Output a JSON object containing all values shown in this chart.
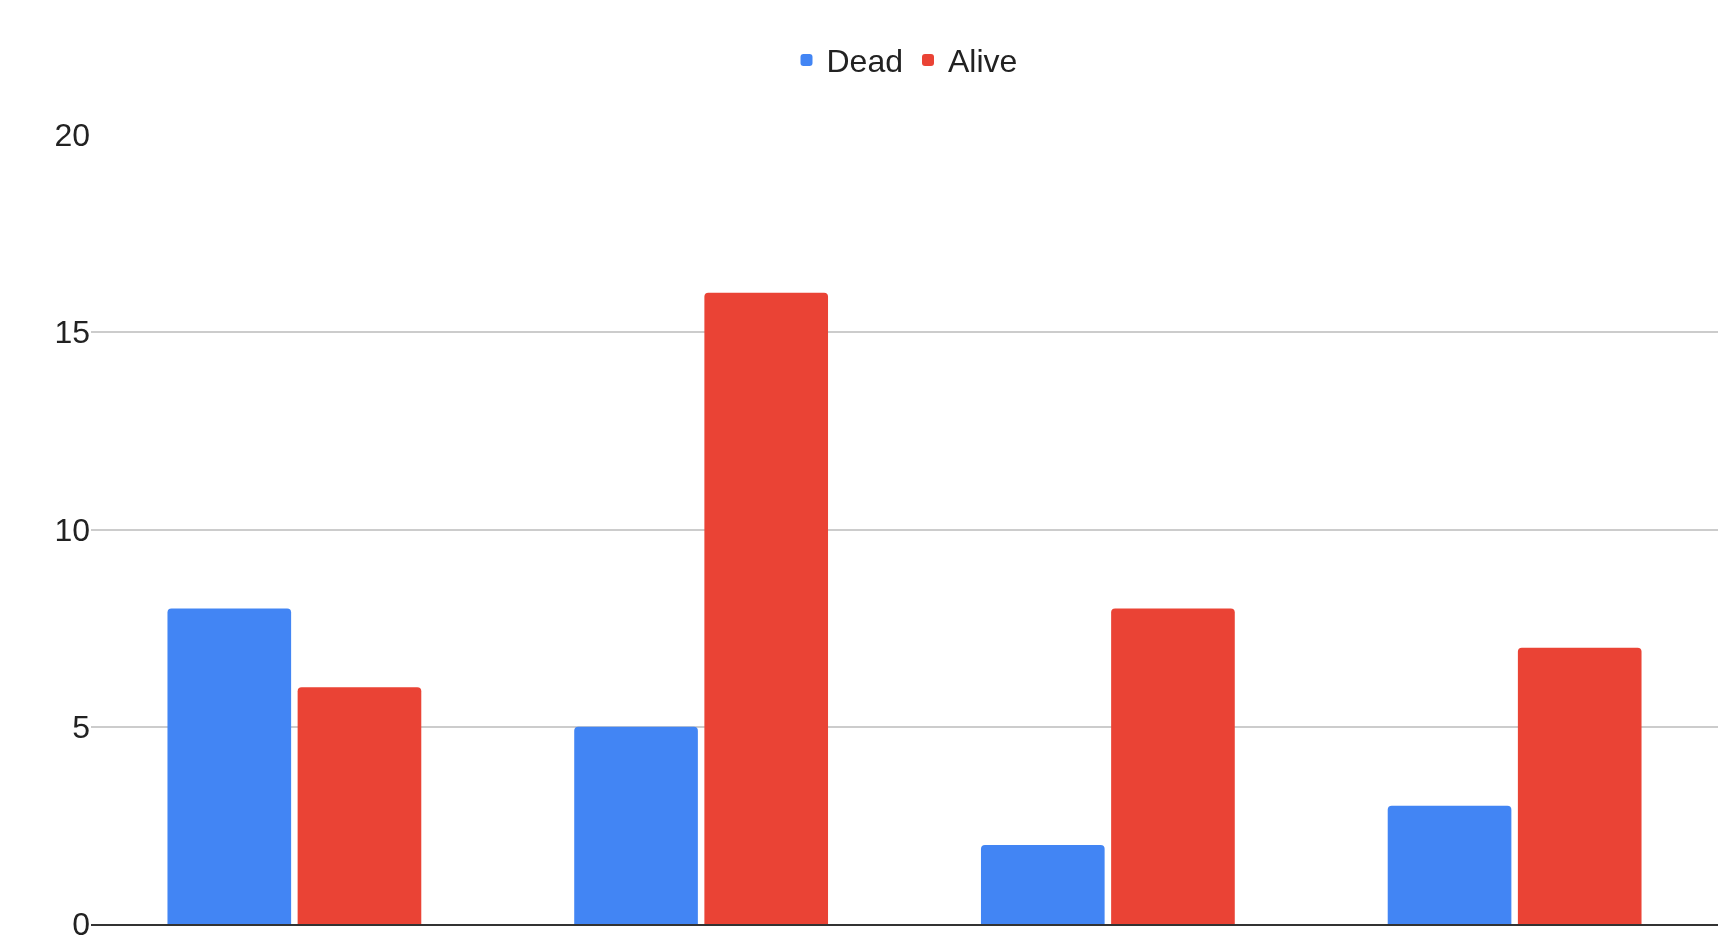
{
  "chart_data": {
    "type": "bar",
    "categories": [
      null,
      null,
      null,
      null
    ],
    "series": [
      {
        "name": "Dead",
        "color": "#4285f4",
        "values": [
          8,
          5,
          2,
          3
        ]
      },
      {
        "name": "Alive",
        "color": "#ea4335",
        "values": [
          6,
          16,
          8,
          7
        ]
      }
    ],
    "ylim": [
      0,
      20
    ],
    "yticks": [
      0,
      5,
      10,
      15,
      20
    ],
    "grid": "y",
    "legend": "top",
    "tick_labels": "y"
  }
}
